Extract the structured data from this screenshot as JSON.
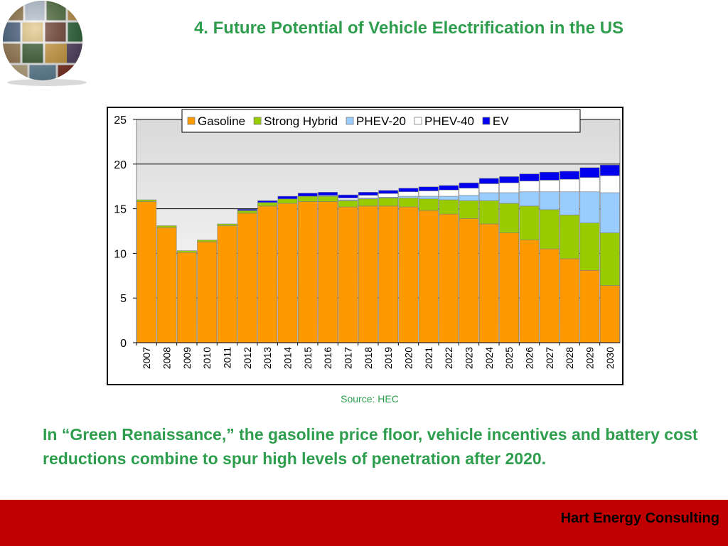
{
  "slide": {
    "title": "4. Future Potential of Vehicle Electrification in the US",
    "source": "Source: HEC",
    "caption": "In “Green Renaissance,” the gasoline price floor, vehicle incentives and battery cost reductions combine to spur high levels of penetration after 2020.",
    "footer": "Hart Energy Consulting",
    "colors": {
      "accent_green": "#2e9e4e",
      "footer_red": "#c00000"
    },
    "logo_icon": "globe-collage-logo"
  },
  "chart_data": {
    "type": "bar",
    "stacked": true,
    "categories": [
      "2007",
      "2008",
      "2009",
      "2010",
      "2011",
      "2012",
      "2013",
      "2014",
      "2015",
      "2016",
      "2017",
      "2018",
      "2019",
      "2020",
      "2021",
      "2022",
      "2023",
      "2024",
      "2025",
      "2026",
      "2027",
      "2028",
      "2029",
      "2030"
    ],
    "series": [
      {
        "name": "Gasoline",
        "color": "#ff9900",
        "values": [
          15.8,
          12.9,
          10.1,
          11.3,
          13.1,
          14.5,
          15.3,
          15.6,
          15.8,
          15.8,
          15.2,
          15.3,
          15.3,
          15.2,
          14.8,
          14.4,
          13.9,
          13.3,
          12.3,
          11.5,
          10.5,
          9.4,
          8.1,
          6.4
        ]
      },
      {
        "name": "Strong Hybrid",
        "color": "#99cc00",
        "values": [
          0.2,
          0.2,
          0.2,
          0.2,
          0.2,
          0.3,
          0.4,
          0.5,
          0.6,
          0.6,
          0.7,
          0.8,
          0.9,
          1.0,
          1.3,
          1.6,
          2.0,
          2.6,
          3.3,
          3.8,
          4.4,
          4.9,
          5.3,
          5.9
        ]
      },
      {
        "name": "PHEV-20",
        "color": "#99ccff",
        "values": [
          0,
          0,
          0,
          0,
          0,
          0,
          0,
          0,
          0,
          0.1,
          0.1,
          0.1,
          0.1,
          0.2,
          0.3,
          0.4,
          0.6,
          0.9,
          1.2,
          1.6,
          2.0,
          2.6,
          3.5,
          4.5
        ]
      },
      {
        "name": "PHEV-40",
        "color": "#ffffff",
        "values": [
          0,
          0,
          0,
          0,
          0,
          0,
          0,
          0,
          0,
          0,
          0.2,
          0.3,
          0.4,
          0.5,
          0.6,
          0.7,
          0.8,
          1.0,
          1.1,
          1.2,
          1.3,
          1.4,
          1.6,
          1.9
        ]
      },
      {
        "name": "EV",
        "color": "#0000ee",
        "values": [
          0,
          0,
          0,
          0,
          0,
          0.15,
          0.2,
          0.3,
          0.35,
          0.35,
          0.35,
          0.35,
          0.35,
          0.4,
          0.45,
          0.5,
          0.6,
          0.6,
          0.7,
          0.8,
          0.9,
          0.9,
          1.1,
          1.2
        ]
      }
    ],
    "ylim": [
      0,
      25
    ],
    "yticks": [
      0,
      5,
      10,
      15,
      20,
      25
    ],
    "xlabel": "",
    "ylabel": "",
    "title": "",
    "grid": true,
    "legend_position": "top"
  }
}
